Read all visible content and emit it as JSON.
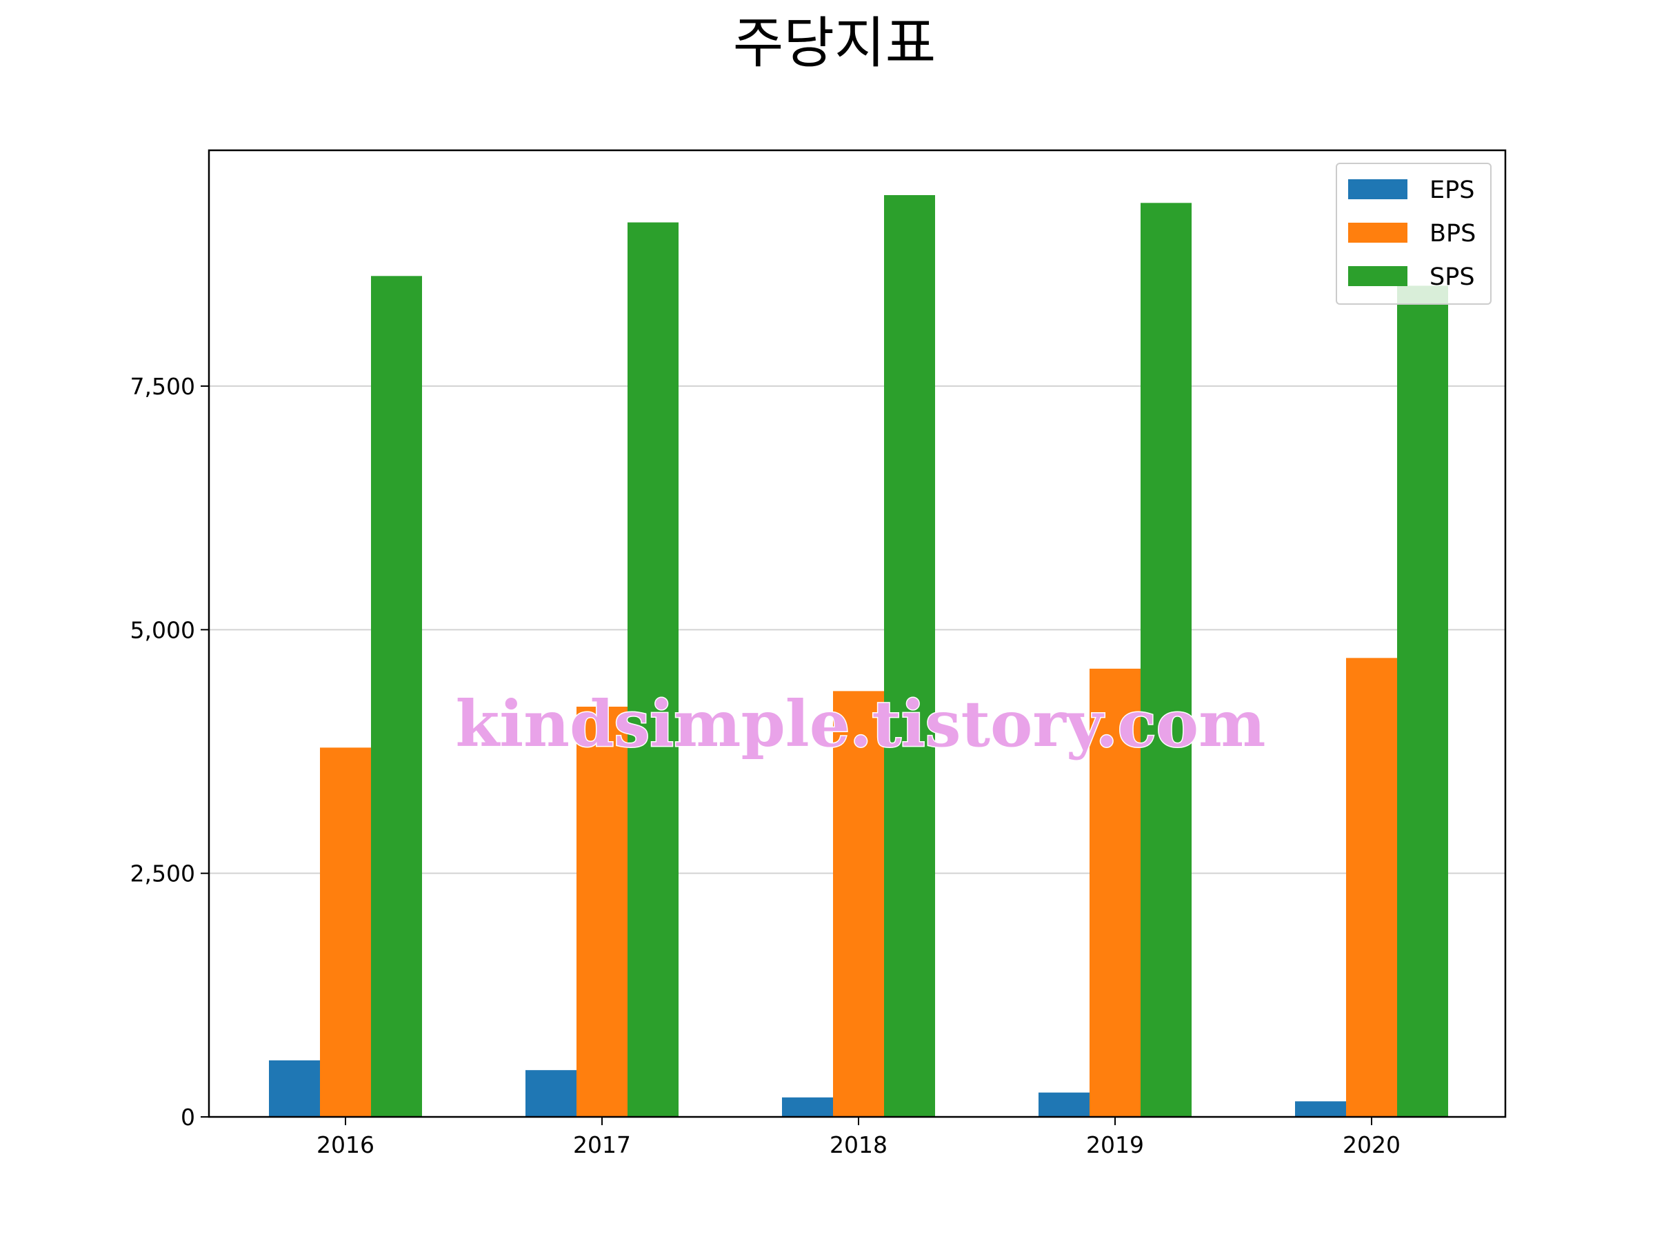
{
  "chart_data": {
    "type": "bar",
    "title": "주당지표",
    "categories": [
      "2016",
      "2017",
      "2018",
      "2019",
      "2020"
    ],
    "series": [
      {
        "name": "EPS",
        "color": "#1f77b4",
        "values": [
          580,
          480,
          200,
          250,
          160
        ]
      },
      {
        "name": "BPS",
        "color": "#ff7f0e",
        "values": [
          3790,
          4210,
          4370,
          4600,
          4710
        ]
      },
      {
        "name": "SPS",
        "color": "#2ca02c",
        "values": [
          8630,
          9180,
          9460,
          9380,
          8530
        ]
      }
    ],
    "ylim": [
      0,
      9920
    ],
    "yticks": [
      0,
      2500,
      5000,
      7500
    ],
    "ytick_labels": [
      "0",
      "2,500",
      "5,000",
      "7,500"
    ],
    "grid": "horizontal",
    "legend_position": "top-right",
    "xlabel": "",
    "ylabel": ""
  },
  "watermark": {
    "text": "kindsimple.tistory.com",
    "color": "#e9a3e9"
  }
}
